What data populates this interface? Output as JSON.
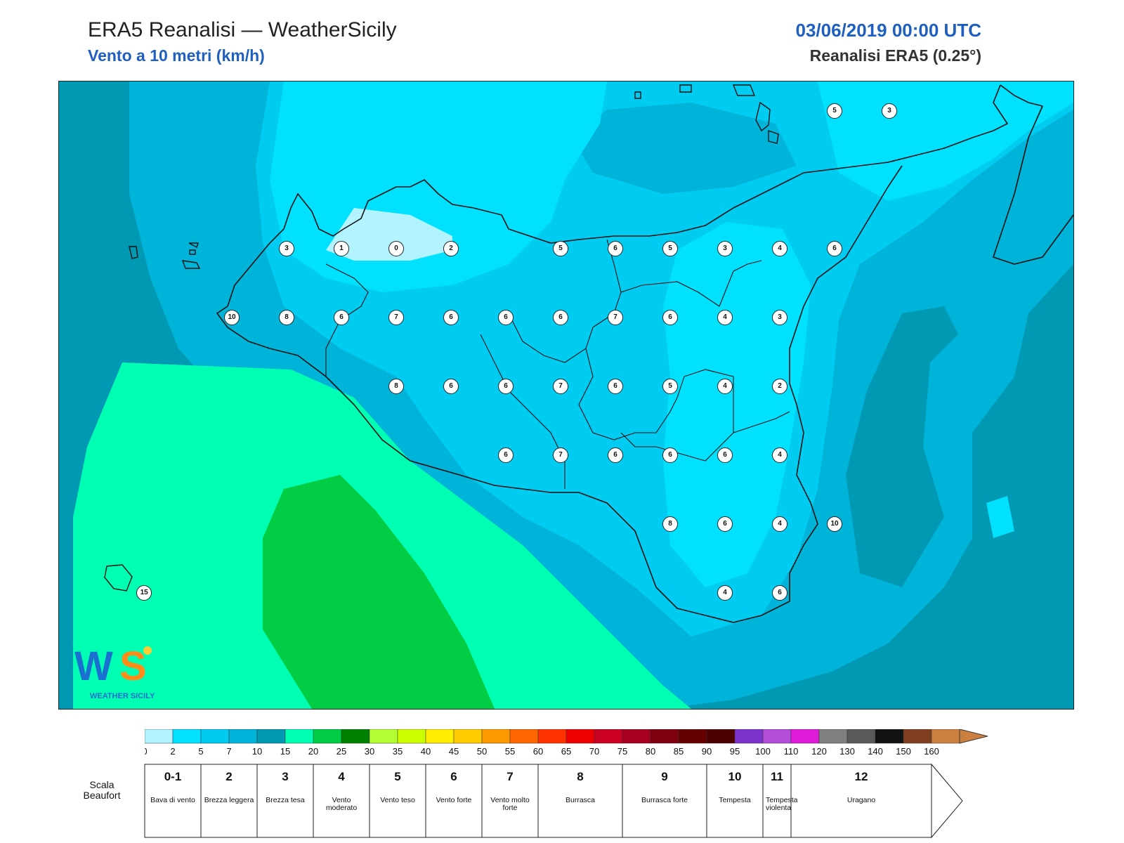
{
  "header": {
    "title": "ERA5 Reanalisi — WeatherSicily",
    "subtitle": "Vento a 10 metri (km/h)",
    "date": "03/06/2019 00:00 UTC",
    "source": "Reanalisi ERA5 (0.25°)"
  },
  "map": {
    "contour_levels_kmh": [
      0,
      2,
      5,
      7,
      10,
      15,
      20,
      25
    ],
    "stations": [
      {
        "lat": 38.0,
        "lon": 12.5,
        "value": "3"
      },
      {
        "lat": 38.0,
        "lon": 13.0,
        "value": "1"
      },
      {
        "lat": 38.0,
        "lon": 13.5,
        "value": "0"
      },
      {
        "lat": 38.0,
        "lon": 14.0,
        "value": "2"
      },
      {
        "lat": 38.0,
        "lon": 15.0,
        "value": "5"
      },
      {
        "lat": 38.0,
        "lon": 15.5,
        "value": "6"
      },
      {
        "lat": 38.0,
        "lon": 16.0,
        "value": "5"
      },
      {
        "lat": 38.0,
        "lon": 16.5,
        "value": "3"
      },
      {
        "lat": 38.0,
        "lon": 17.0,
        "value": "4"
      },
      {
        "lat": 38.0,
        "lon": 17.5,
        "value": "6"
      },
      {
        "lat": 37.5,
        "lon": 12.0,
        "value": "10"
      },
      {
        "lat": 37.5,
        "lon": 12.5,
        "value": "8"
      },
      {
        "lat": 37.5,
        "lon": 13.0,
        "value": "6"
      },
      {
        "lat": 37.5,
        "lon": 13.5,
        "value": "7"
      },
      {
        "lat": 37.5,
        "lon": 14.0,
        "value": "6"
      },
      {
        "lat": 37.5,
        "lon": 14.5,
        "value": "6"
      },
      {
        "lat": 37.5,
        "lon": 15.0,
        "value": "6"
      },
      {
        "lat": 37.5,
        "lon": 15.5,
        "value": "7"
      },
      {
        "lat": 37.5,
        "lon": 16.0,
        "value": "6"
      },
      {
        "lat": 37.5,
        "lon": 16.5,
        "value": "4"
      },
      {
        "lat": 37.5,
        "lon": 17.0,
        "value": "3"
      },
      {
        "lat": 37.0,
        "lon": 13.5,
        "value": "8"
      },
      {
        "lat": 37.0,
        "lon": 14.0,
        "value": "6"
      },
      {
        "lat": 37.0,
        "lon": 14.5,
        "value": "6"
      },
      {
        "lat": 37.0,
        "lon": 15.0,
        "value": "7"
      },
      {
        "lat": 37.0,
        "lon": 15.5,
        "value": "6"
      },
      {
        "lat": 37.0,
        "lon": 16.0,
        "value": "5"
      },
      {
        "lat": 37.0,
        "lon": 16.5,
        "value": "4"
      },
      {
        "lat": 37.0,
        "lon": 17.0,
        "value": "2"
      },
      {
        "lat": 36.5,
        "lon": 14.5,
        "value": "6"
      },
      {
        "lat": 36.5,
        "lon": 15.0,
        "value": "7"
      },
      {
        "lat": 36.5,
        "lon": 15.5,
        "value": "6"
      },
      {
        "lat": 36.5,
        "lon": 16.0,
        "value": "6"
      },
      {
        "lat": 36.5,
        "lon": 16.5,
        "value": "6"
      },
      {
        "lat": 36.5,
        "lon": 17.0,
        "value": "4"
      },
      {
        "lat": 36.0,
        "lon": 16.0,
        "value": "8"
      },
      {
        "lat": 36.0,
        "lon": 16.5,
        "value": "6"
      },
      {
        "lat": 36.0,
        "lon": 17.0,
        "value": "4"
      },
      {
        "lat": 36.0,
        "lon": 17.5,
        "value": "10"
      },
      {
        "lat": 35.5,
        "lon": 16.5,
        "value": "4"
      },
      {
        "lat": 35.5,
        "lon": 17.0,
        "value": "6"
      },
      {
        "lat": 35.5,
        "lon": 11.2,
        "value": "15"
      },
      {
        "lat": 39.0,
        "lon": 17.5,
        "value": "5"
      },
      {
        "lat": 39.0,
        "lon": 18.0,
        "value": "3"
      }
    ]
  },
  "logo": {
    "text": "WEATHER SICILY",
    "mark": "WS"
  },
  "colorbar": {
    "ticks": [
      "0",
      "2",
      "5",
      "7",
      "10",
      "15",
      "20",
      "25",
      "30",
      "35",
      "40",
      "45",
      "50",
      "55",
      "60",
      "65",
      "70",
      "75",
      "80",
      "85",
      "90",
      "95",
      "100",
      "110",
      "120",
      "130",
      "140",
      "150",
      "160"
    ],
    "colors": [
      "#b3f2ff",
      "#00e0ff",
      "#00ccf2",
      "#00b3d9",
      "#0099b3",
      "#00ffb3",
      "#00cc44",
      "#008000",
      "#b3ff33",
      "#ccff00",
      "#ffee00",
      "#ffcc00",
      "#ff9900",
      "#ff6600",
      "#ff3300",
      "#ee0000",
      "#cc0022",
      "#a50020",
      "#800010",
      "#660000",
      "#4d0000",
      "#7a33cc",
      "#b34dd9",
      "#e01ad9",
      "#808080",
      "#595959",
      "#111111",
      "#804020",
      "#cc8040"
    ]
  },
  "beaufort": {
    "label": "Scala Beaufort",
    "classes": [
      {
        "num": "0-1",
        "name": "Bava di vento",
        "from": 0,
        "to": 5
      },
      {
        "num": "2",
        "name": "Brezza leggera",
        "from": 5,
        "to": 10
      },
      {
        "num": "3",
        "name": "Brezza tesa",
        "from": 10,
        "to": 20
      },
      {
        "num": "4",
        "name": "Vento moderato",
        "from": 20,
        "to": 30
      },
      {
        "num": "5",
        "name": "Vento teso",
        "from": 30,
        "to": 40
      },
      {
        "num": "6",
        "name": "Vento forte",
        "from": 40,
        "to": 50
      },
      {
        "num": "7",
        "name": "Vento molto forte",
        "from": 50,
        "to": 60
      },
      {
        "num": "8",
        "name": "Burrasca",
        "from": 60,
        "to": 75
      },
      {
        "num": "9",
        "name": "Burrasca forte",
        "from": 75,
        "to": 90
      },
      {
        "num": "10",
        "name": "Tempesta",
        "from": 90,
        "to": 100
      },
      {
        "num": "11",
        "name": "Tempesta violenta",
        "from": 100,
        "to": 110
      },
      {
        "num": "12",
        "name": "Uragano",
        "from": 110,
        "to": 160
      }
    ]
  }
}
